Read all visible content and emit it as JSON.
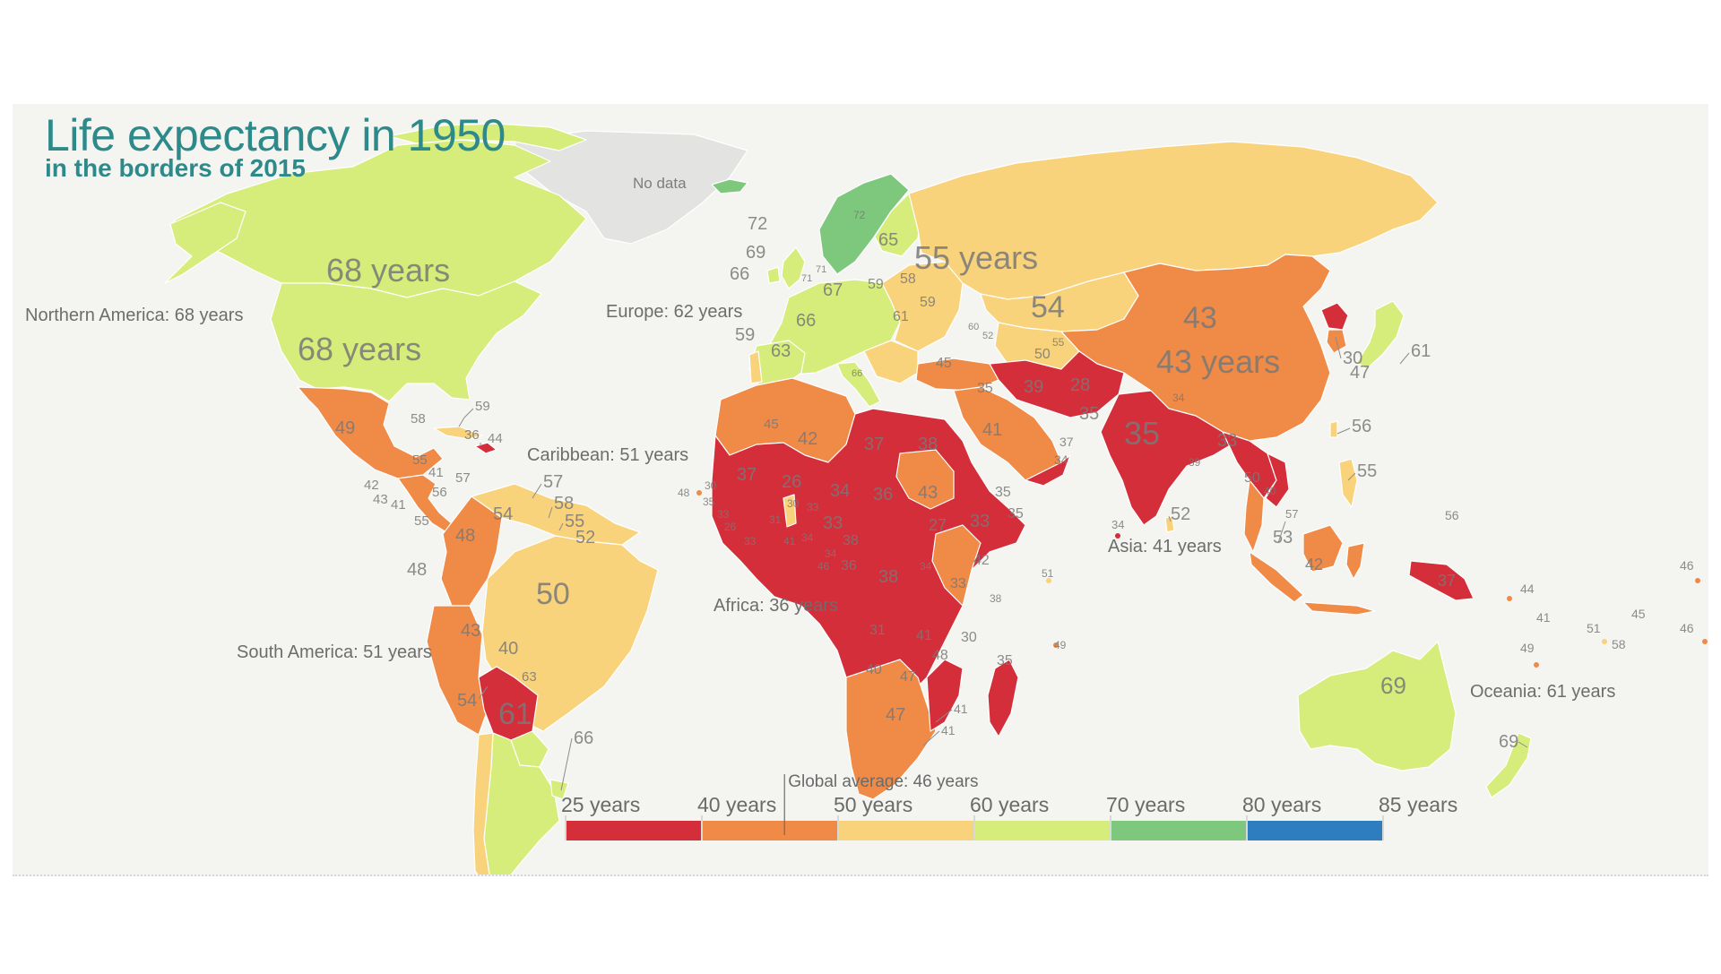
{
  "title": "Life expectancy in 1950",
  "subtitle": "in the borders of 2015",
  "no_data_label": "No data",
  "colors": {
    "c25": "#d42e3b",
    "c40": "#f08a47",
    "c50": "#f9d37c",
    "c60": "#d6ec7b",
    "c70": "#7ec87e",
    "c80": "#2e7ebf",
    "nodata": "#e3e3e1",
    "background": "#f4f4f1",
    "title": "#2e8a8a"
  },
  "region_labels": {
    "northern_america": "Northern America: 68 years",
    "europe": "Europe: 62 years",
    "caribbean": "Caribbean: 51 years",
    "south_america": "South America: 51 years",
    "africa": "Africa: 36 years",
    "asia": "Asia: 41 years",
    "oceania": "Oceania: 61 years"
  },
  "big_labels": {
    "canada": "68 years",
    "usa": "68 years",
    "russia": "55 years",
    "china": "43 years",
    "kazakhstan": "54",
    "mongolia": "43",
    "india": "35",
    "brazil": "50",
    "argentina": "61",
    "australia": "69"
  },
  "country_values": {
    "greenland_none": "",
    "iceland": "72",
    "norway": "72",
    "finland": "65",
    "ireland": "66",
    "uk": "69",
    "denmark": "71",
    "netherlands": "71",
    "germany": "67",
    "poland": "59",
    "belarus": "58",
    "ukraine": "59",
    "france": "66",
    "portugal": "59",
    "spain": "63",
    "italy": "66",
    "romania": "61",
    "turkey": "45",
    "mexico": "49",
    "cuba": "58",
    "bahamas": "59",
    "dominican": "44",
    "haiti": "36",
    "honduras": "41",
    "guatemala": "42",
    "elsalvador": "43",
    "nicaragua": "41",
    "costarica": "56",
    "panama": "55",
    "jamaica": "55",
    "puerto": "57",
    "venezuela": "54",
    "trinidad": "57",
    "guyana": "58",
    "suriname": "55",
    "fguiana": "52",
    "colombia": "48",
    "ecuador": "48",
    "peru": "43",
    "bolivia": "40",
    "paraguay": "63",
    "chile": "54",
    "uruguay": "66",
    "morocco": "45",
    "algeria": "42",
    "libya": "37",
    "egypt": "38",
    "mauritania": "37",
    "mali": "26",
    "niger": "34",
    "chad": "36",
    "sudan": "43",
    "ethiopia": "33",
    "somalia": "35",
    "eritrea": "35",
    "nigeria": "33",
    "cameroon": "38",
    "car": "27",
    "drc": "38",
    "tanzania": "33",
    "kenya": "42",
    "angola": "31",
    "zambia": "41",
    "mozambique": "30",
    "madagascar": "35",
    "namibia": "40",
    "botswana": "47",
    "zimbabwe": "48",
    "southafrica": "47",
    "lesotho": "41",
    "swaziland": "41",
    "gabon": "36",
    "congo": "34",
    "capeverde": "48",
    "guinea": "30",
    "senegal": "35",
    "gambia": "33",
    "sierraleone": "26",
    "liberia": "33",
    "ivory": "31",
    "ghana": "41",
    "togo": "34",
    "burkina": "30",
    "benin": "33",
    "eqguinea": "34",
    "saotome": "46",
    "mauritius": "49",
    "reunion": "49",
    "comoros": "38",
    "seychelles": "51",
    "saudi": "41",
    "yemen": "34",
    "oman": "37",
    "iraq": "35",
    "iran": "39",
    "afghanistan": "28",
    "pakistan": "35",
    "nepal": "34",
    "bangladesh": "39",
    "myanmar": "33",
    "thailand": "50",
    "vietnam": "40",
    "srilanka": "52",
    "maldives": "34",
    "malaysia": "53",
    "singapore": "57",
    "philippines": "55",
    "indonesia": "42",
    "png": "37",
    "northkorea": "30",
    "southkorea": "47",
    "japan": "61",
    "taiwan": "56",
    "hongkong": "56",
    "uzbekistan": "50",
    "turkmenistan": "55",
    "georgia": "60",
    "azerbaijan": "52",
    "solomon": "44",
    "vanuatu": "41",
    "fiji": "49",
    "samoa": "51",
    "tonga": "58",
    "frenchpoly": "46",
    "micronesia": "56",
    "kiribati": "46",
    "cookis": "45",
    "nz": "69"
  },
  "legend": {
    "global_average": "Global average: 46 years",
    "ticks": [
      "25 years",
      "40 years",
      "50 years",
      "60 years",
      "70 years",
      "80 years",
      "85 years"
    ],
    "values": [
      25,
      40,
      50,
      60,
      70,
      80,
      85
    ],
    "global_value": 46
  }
}
